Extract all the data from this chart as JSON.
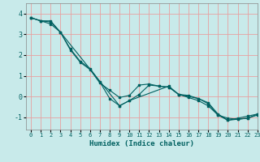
{
  "xlabel": "Humidex (Indice chaleur)",
  "background_color": "#c8eaea",
  "line_color": "#006060",
  "grid_color": "#e8a0a0",
  "xlim": [
    -0.5,
    23
  ],
  "ylim": [
    -1.6,
    4.5
  ],
  "xticks": [
    0,
    1,
    2,
    3,
    4,
    5,
    6,
    7,
    8,
    9,
    10,
    11,
    12,
    13,
    14,
    15,
    16,
    17,
    18,
    19,
    20,
    21,
    22,
    23
  ],
  "yticks": [
    -1,
    0,
    1,
    2,
    3,
    4
  ],
  "line1_x": [
    0,
    1,
    2,
    3,
    4,
    5,
    6,
    7,
    8,
    9,
    10,
    11,
    12,
    13,
    14,
    15,
    16,
    17,
    18,
    19,
    20,
    21,
    22,
    23
  ],
  "line1_y": [
    3.8,
    3.65,
    3.6,
    3.1,
    2.25,
    1.65,
    1.3,
    0.65,
    0.3,
    -0.05,
    0.05,
    0.55,
    0.6,
    0.5,
    0.45,
    0.1,
    0.05,
    -0.1,
    -0.3,
    -0.85,
    -1.15,
    -1.05,
    -0.95,
    -0.85
  ],
  "line2_x": [
    0,
    1,
    2,
    3,
    4,
    5,
    6,
    7,
    8,
    9,
    10,
    11,
    12,
    13,
    14,
    15,
    16,
    17,
    18,
    19,
    20,
    21,
    22,
    23
  ],
  "line2_y": [
    3.8,
    3.65,
    3.5,
    3.1,
    2.3,
    1.7,
    1.35,
    0.7,
    -0.1,
    -0.45,
    -0.2,
    0.1,
    0.55,
    0.5,
    0.45,
    0.1,
    0.0,
    -0.1,
    -0.35,
    -0.9,
    -1.05,
    -1.1,
    -1.05,
    -0.9
  ],
  "line3_x": [
    0,
    1,
    2,
    3,
    9,
    10,
    14,
    15,
    16,
    17,
    18,
    19,
    20,
    21,
    22,
    23
  ],
  "line3_y": [
    3.8,
    3.65,
    3.65,
    3.1,
    -0.45,
    -0.2,
    0.5,
    0.1,
    -0.05,
    -0.2,
    -0.45,
    -0.9,
    -1.15,
    -1.1,
    -1.05,
    -0.85
  ]
}
